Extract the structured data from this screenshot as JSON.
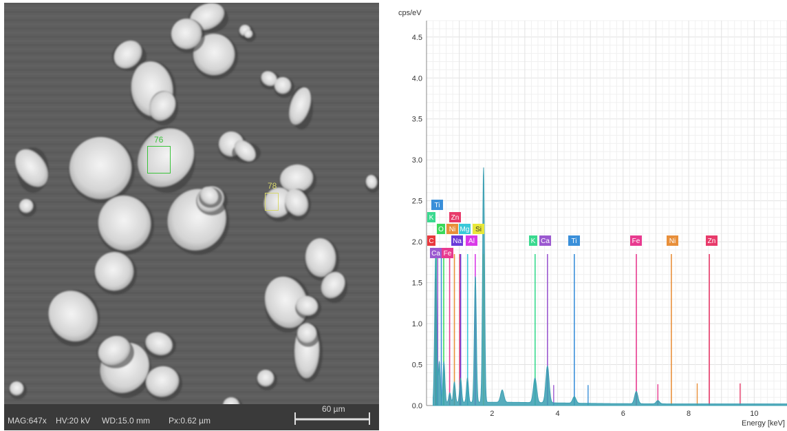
{
  "sem": {
    "info": {
      "mag": "MAG:647x",
      "hv": "HV:20 kV",
      "wd": "WD:15.0 mm",
      "px": "Px:0.62 µm"
    },
    "scale_bar_label": "60 µm",
    "markers": [
      {
        "label": "76",
        "color": "#39c339"
      },
      {
        "label": "78",
        "color": "#d6d66a"
      }
    ]
  },
  "chart_data": {
    "type": "line",
    "title": "",
    "ylabel": "cps/eV",
    "xlabel": "Energy [keV]",
    "xlim": [
      0,
      11
    ],
    "ylim": [
      0,
      4.7
    ],
    "x_ticks": [
      2,
      4,
      6,
      8,
      10
    ],
    "y_ticks": [
      0.0,
      0.5,
      1.0,
      1.5,
      2.0,
      2.5,
      3.0,
      3.5,
      4.0,
      4.5
    ],
    "grid": true,
    "spectrum_color": "#3a9fb2",
    "spectrum_peaks": [
      {
        "x": 0.28,
        "y": 1.85
      },
      {
        "x": 0.39,
        "y": 0.5
      },
      {
        "x": 0.53,
        "y": 0.5
      },
      {
        "x": 0.71,
        "y": 0.12
      },
      {
        "x": 0.85,
        "y": 0.25
      },
      {
        "x": 1.04,
        "y": 0.3
      },
      {
        "x": 1.25,
        "y": 0.3
      },
      {
        "x": 1.49,
        "y": 1.55
      },
      {
        "x": 1.74,
        "y": 2.87
      },
      {
        "x": 2.31,
        "y": 0.15
      },
      {
        "x": 3.31,
        "y": 0.3
      },
      {
        "x": 3.69,
        "y": 0.45
      },
      {
        "x": 4.51,
        "y": 0.08
      },
      {
        "x": 6.4,
        "y": 0.15
      },
      {
        "x": 7.06,
        "y": 0.04
      }
    ],
    "element_lines": [
      {
        "element": "C",
        "x": 0.277,
        "color": "#e8383d",
        "height": 1.55
      },
      {
        "element": "Ca",
        "x": 0.341,
        "color": "#9b59d0",
        "height": 1.85
      },
      {
        "element": "Ti",
        "x": 0.452,
        "color": "#3a8fd9",
        "height": 1.85
      },
      {
        "element": "K",
        "x": 0.3,
        "color": "#3ad98f",
        "height": 1.85
      },
      {
        "element": "O",
        "x": 0.525,
        "color": "#3ad95a",
        "height": 1.85
      },
      {
        "element": "Fe",
        "x": 0.705,
        "color": "#e83a8f",
        "height": 1.85
      },
      {
        "element": "Ni",
        "x": 0.851,
        "color": "#e88f3a",
        "height": 1.85
      },
      {
        "element": "Zn",
        "x": 1.012,
        "color": "#e83a6a",
        "height": 1.85
      },
      {
        "element": "Na",
        "x": 1.041,
        "color": "#6a3ad9",
        "height": 1.85
      },
      {
        "element": "Mg",
        "x": 1.254,
        "color": "#3ac9d9",
        "height": 1.85
      },
      {
        "element": "Al",
        "x": 1.487,
        "color": "#d93ae8",
        "height": 1.85
      },
      {
        "element": "Si",
        "x": 1.74,
        "color": "#e8e83a",
        "height": 1.85
      },
      {
        "element": "K",
        "x": 3.313,
        "color": "#3ad98f",
        "height": 1.85
      },
      {
        "element": "Ca",
        "x": 3.691,
        "color": "#9b59d0",
        "height": 1.85
      },
      {
        "element": "Ti",
        "x": 4.51,
        "color": "#3a8fd9",
        "height": 1.85
      },
      {
        "element": "Fe",
        "x": 6.403,
        "color": "#e83a8f",
        "height": 1.85
      },
      {
        "element": "Ni",
        "x": 7.471,
        "color": "#e88f3a",
        "height": 1.85
      },
      {
        "element": "Zn",
        "x": 8.63,
        "color": "#e83a6a",
        "height": 1.85
      }
    ],
    "minor_lines": [
      {
        "x": 3.88,
        "color": "#9b59d0",
        "height": 0.25
      },
      {
        "x": 4.93,
        "color": "#3a8fd9",
        "height": 0.25
      },
      {
        "x": 7.06,
        "color": "#e83a8f",
        "height": 0.26
      },
      {
        "x": 8.26,
        "color": "#e88f3a",
        "height": 0.27
      },
      {
        "x": 9.57,
        "color": "#e83a6a",
        "height": 0.27
      }
    ],
    "labels": [
      {
        "text": "Ti",
        "color": "#3a8fd9"
      },
      {
        "text": "K",
        "color": "#3ad98f"
      },
      {
        "text": "Zn",
        "color": "#e83a6a"
      },
      {
        "text": "O",
        "color": "#3ad95a"
      },
      {
        "text": "Ni",
        "color": "#e88f3a"
      },
      {
        "text": "Mg",
        "color": "#3ac9d9"
      },
      {
        "text": "Si",
        "color": "#e8e83a"
      },
      {
        "text": "C",
        "color": "#e8383d"
      },
      {
        "text": "Na",
        "color": "#6a3ad9"
      },
      {
        "text": "Al",
        "color": "#d93ae8"
      },
      {
        "text": "Ca",
        "color": "#9b59d0"
      },
      {
        "text": "Fe",
        "color": "#e83a8f"
      },
      {
        "text": "K",
        "color": "#3ad98f"
      },
      {
        "text": "Ca",
        "color": "#9b59d0"
      },
      {
        "text": "Ti",
        "color": "#3a8fd9"
      },
      {
        "text": "Fe",
        "color": "#e83a8f"
      },
      {
        "text": "Ni",
        "color": "#e88f3a"
      },
      {
        "text": "Zn",
        "color": "#e83a6a"
      }
    ]
  }
}
